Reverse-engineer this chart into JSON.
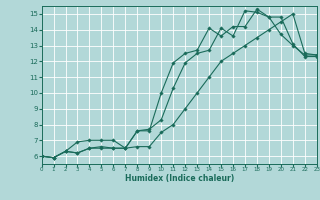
{
  "title": "",
  "xlabel": "Humidex (Indice chaleur)",
  "xlim": [
    0,
    23
  ],
  "ylim": [
    5.5,
    15.5
  ],
  "xticks": [
    0,
    1,
    2,
    3,
    4,
    5,
    6,
    7,
    8,
    9,
    10,
    11,
    12,
    13,
    14,
    15,
    16,
    17,
    18,
    19,
    20,
    21,
    22,
    23
  ],
  "yticks": [
    6,
    7,
    8,
    9,
    10,
    11,
    12,
    13,
    14,
    15
  ],
  "background_color": "#b2d8d8",
  "grid_color": "#ffffff",
  "line_color": "#1a6b5a",
  "line1_x": [
    0,
    1,
    2,
    3,
    4,
    5,
    6,
    7,
    8,
    9,
    10,
    11,
    12,
    13,
    14,
    15,
    16,
    17,
    18,
    19,
    20,
    21,
    22,
    23
  ],
  "line1_y": [
    6.0,
    5.9,
    6.3,
    6.2,
    6.5,
    6.5,
    6.5,
    6.5,
    7.6,
    7.6,
    10.0,
    11.9,
    12.5,
    12.7,
    14.1,
    13.6,
    14.2,
    14.2,
    15.3,
    14.8,
    13.7,
    13.0,
    12.4,
    12.4
  ],
  "line2_x": [
    0,
    1,
    2,
    3,
    4,
    5,
    6,
    7,
    8,
    9,
    10,
    11,
    12,
    13,
    14,
    15,
    16,
    17,
    18,
    19,
    20,
    21,
    22,
    23
  ],
  "line2_y": [
    6.0,
    5.9,
    6.3,
    6.2,
    6.5,
    6.6,
    6.5,
    6.5,
    7.6,
    7.7,
    8.3,
    10.3,
    11.9,
    12.5,
    12.7,
    14.1,
    13.6,
    15.2,
    15.1,
    14.8,
    14.8,
    13.1,
    12.3,
    12.3
  ],
  "line3_x": [
    0,
    1,
    2,
    3,
    4,
    5,
    6,
    7,
    8,
    9,
    10,
    11,
    12,
    13,
    14,
    15,
    16,
    17,
    18,
    19,
    20,
    21,
    22,
    23
  ],
  "line3_y": [
    6.0,
    5.9,
    6.3,
    6.9,
    7.0,
    7.0,
    7.0,
    6.5,
    6.6,
    6.6,
    7.5,
    8.0,
    9.0,
    10.0,
    11.0,
    12.0,
    12.5,
    13.0,
    13.5,
    14.0,
    14.5,
    15.0,
    12.5,
    12.4
  ]
}
